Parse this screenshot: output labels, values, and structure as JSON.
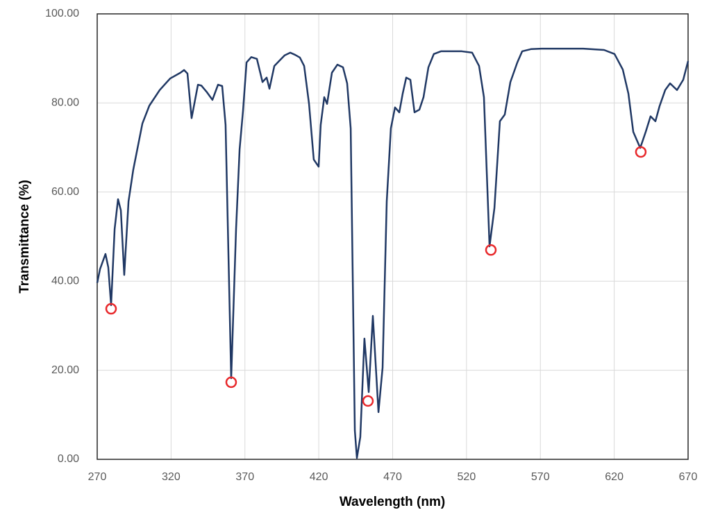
{
  "chart_data": {
    "type": "line",
    "x_label": "Wavelength (nm)",
    "y_label": "Transmittance (%)",
    "xlim": [
      270,
      670
    ],
    "xticks": [
      270,
      320,
      370,
      420,
      470,
      520,
      570,
      620,
      670
    ],
    "ylim": [
      0,
      100
    ],
    "yticks": [
      {
        "value": 0,
        "label": "0.00"
      },
      {
        "value": 20,
        "label": "20.00"
      },
      {
        "value": 40,
        "label": "40.00"
      },
      {
        "value": 60,
        "label": "60.00"
      },
      {
        "value": 80,
        "label": "80.00"
      },
      {
        "value": 100,
        "label": "100.00"
      }
    ],
    "grid": true,
    "series": [
      {
        "color": "#203864",
        "x": [
          270,
          271.9,
          275.6,
          277.5,
          279.4,
          281.8,
          284.1,
          286,
          288.3,
          291.2,
          294.4,
          300.6,
          305.3,
          312.3,
          319.4,
          326.4,
          328.8,
          331.1,
          333.9,
          338.2,
          340.5,
          344.3,
          348,
          351.8,
          354.6,
          356.9,
          360.7,
          364,
          366.4,
          368.7,
          371.1,
          374.3,
          378.1,
          381.9,
          384.7,
          386.6,
          389.9,
          393.1,
          396.9,
          400.7,
          404,
          407.2,
          410.1,
          413.4,
          416.6,
          419.9,
          421.3,
          423.7,
          425.6,
          428.9,
          432.6,
          436.4,
          439.2,
          441.6,
          444.4,
          445.8,
          448.1,
          450.9,
          453.8,
          456.6,
          460.4,
          463.2,
          466,
          468.8,
          471.6,
          474.5,
          476.8,
          479.2,
          482,
          484.8,
          488.1,
          490.9,
          494.2,
          497.9,
          502.7,
          516.8,
          523.8,
          528.5,
          531.8,
          535.6,
          538.9,
          542.6,
          545.9,
          549.7,
          554.4,
          557.7,
          563.8,
          570.8,
          594.3,
          599,
          613.1,
          620.2,
          625.8,
          629.6,
          632.9,
          637.6,
          641.3,
          644.6,
          647.9,
          650.7,
          654.5,
          657.8,
          662.5,
          666.7,
          670
        ],
        "values": [
          39.6,
          42.7,
          46.1,
          43.1,
          34.6,
          51.7,
          58.4,
          55.9,
          41.4,
          57.9,
          65,
          75.4,
          79.4,
          82.9,
          85.5,
          86.8,
          87.4,
          86.6,
          76.6,
          84.1,
          83.9,
          82.4,
          80.7,
          84.1,
          83.8,
          75.1,
          18.2,
          51.7,
          69.6,
          78.2,
          89.1,
          90.3,
          89.9,
          84.7,
          85.7,
          83.2,
          88.3,
          89.4,
          90.7,
          91.3,
          90.8,
          90.2,
          88.3,
          79.8,
          67.3,
          65.7,
          75.1,
          81.3,
          79.8,
          86.8,
          88.6,
          88,
          84.4,
          74.3,
          6.5,
          0.3,
          5,
          27.1,
          15.1,
          32.2,
          10.6,
          20.6,
          57.9,
          74.3,
          79,
          77.9,
          82.1,
          85.7,
          85.2,
          77.9,
          78.5,
          81.3,
          88,
          91,
          91.6,
          91.6,
          91.3,
          88.3,
          81.3,
          47.8,
          56.4,
          75.9,
          77.4,
          84.7,
          89.1,
          91.6,
          92.1,
          92.2,
          92.2,
          92.2,
          91.9,
          91,
          87.5,
          82.1,
          73.5,
          69.9,
          73.5,
          77,
          75.9,
          79.3,
          82.9,
          84.4,
          82.9,
          85.2,
          89.4
        ]
      }
    ],
    "highlights": {
      "color": "#e8282b",
      "x": [
        279.4,
        360.7,
        453.3,
        536.5,
        638
      ],
      "values": [
        33.8,
        17.3,
        13.1,
        47,
        69
      ]
    }
  }
}
